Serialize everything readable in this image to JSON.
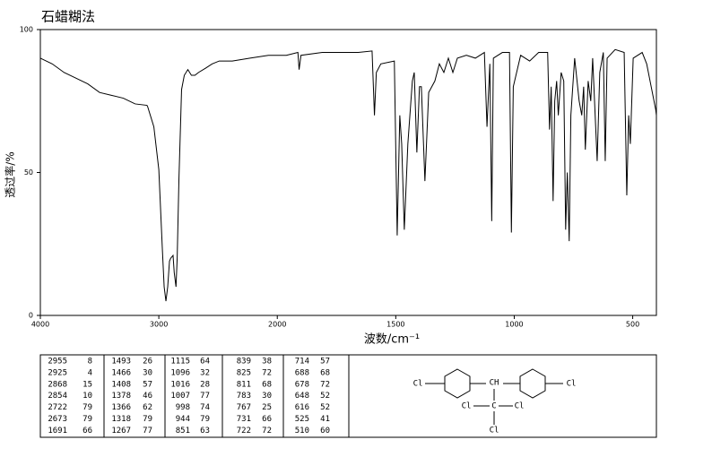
{
  "chart_data": {
    "type": "line",
    "title": "石蜡糊法",
    "x_label": "波数/cm⁻¹",
    "y_label": "透过率/%",
    "x": [
      4000,
      3900,
      3800,
      3700,
      3600,
      3500,
      3400,
      3300,
      3200,
      3100,
      3094,
      3042,
      3000,
      2970,
      2955,
      2940,
      2925,
      2910,
      2900,
      2880,
      2870,
      2855,
      2845,
      2830,
      2808,
      2785,
      2755,
      2725,
      2695,
      2665,
      2605,
      2550,
      2490,
      2380,
      2230,
      2075,
      1962,
      1913,
      1908,
      1900,
      1810,
      1658,
      1600,
      1590,
      1582,
      1563,
      1506,
      1494,
      1483,
      1475,
      1464,
      1449,
      1430,
      1422,
      1411,
      1400,
      1392,
      1377,
      1361,
      1335,
      1316,
      1297,
      1278,
      1259,
      1240,
      1202,
      1164,
      1126,
      1115,
      1103,
      1095,
      1088,
      1050,
      1020,
      1012,
      1004,
      973,
      935,
      897,
      859,
      851,
      844,
      836,
      829,
      821,
      814,
      802,
      791,
      783,
      776,
      768,
      761,
      745,
      726,
      715,
      707,
      700,
      688,
      677,
      669,
      650,
      639,
      624,
      616,
      608,
      574,
      536,
      525,
      517,
      510,
      498,
      460,
      441,
      422,
      403,
      400
    ],
    "series": [
      {
        "color": "#000000",
        "values": [
          90,
          88,
          85,
          83,
          81,
          78,
          77,
          76,
          74,
          73.5,
          73,
          66,
          51,
          23,
          10,
          5,
          10,
          19,
          20,
          21,
          15,
          10,
          20,
          48,
          79,
          84,
          86,
          84,
          84,
          85,
          86.5,
          88,
          89,
          89,
          90,
          91,
          91,
          92,
          86,
          91,
          92,
          92,
          92.5,
          70,
          85,
          88,
          89,
          28,
          70,
          60,
          30,
          60,
          82,
          85,
          57,
          80,
          80,
          47,
          78,
          82,
          88,
          85,
          90,
          85,
          90,
          91,
          90,
          92,
          66,
          88,
          33,
          90,
          92,
          92,
          29,
          80,
          91,
          89,
          92,
          92,
          65,
          80,
          40,
          75,
          82,
          70,
          85,
          82,
          30,
          50,
          26,
          70,
          90,
          75,
          70,
          80,
          58,
          82,
          75,
          90,
          54,
          85,
          92,
          54,
          90,
          93,
          92,
          42,
          70,
          60,
          90,
          92,
          88,
          80,
          72,
          70
        ]
      }
    ],
    "xlim": [
      4000,
      400
    ],
    "xticks": [
      4000,
      3000,
      2000,
      1500,
      1000,
      500
    ],
    "ylim": [
      0,
      100
    ],
    "yticks": [
      0,
      50,
      100
    ]
  },
  "peak_table": [
    [
      [
        2955,
        8
      ],
      [
        2925,
        4
      ],
      [
        2868,
        15
      ],
      [
        2854,
        10
      ],
      [
        2722,
        79
      ],
      [
        2673,
        79
      ],
      [
        1691,
        66
      ]
    ],
    [
      [
        1493,
        26
      ],
      [
        1466,
        30
      ],
      [
        1408,
        57
      ],
      [
        1378,
        46
      ],
      [
        1366,
        62
      ],
      [
        1318,
        79
      ],
      [
        1267,
        77
      ]
    ],
    [
      [
        1115,
        64
      ],
      [
        1096,
        32
      ],
      [
        1016,
        28
      ],
      [
        1007,
        77
      ],
      [
        998,
        74
      ],
      [
        944,
        79
      ],
      [
        851,
        63
      ]
    ],
    [
      [
        839,
        38
      ],
      [
        825,
        72
      ],
      [
        811,
        68
      ],
      [
        783,
        30
      ],
      [
        767,
        25
      ],
      [
        731,
        66
      ],
      [
        722,
        72
      ]
    ],
    [
      [
        714,
        57
      ],
      [
        688,
        68
      ],
      [
        678,
        72
      ],
      [
        648,
        52
      ],
      [
        616,
        52
      ],
      [
        525,
        41
      ],
      [
        510,
        60
      ]
    ]
  ],
  "structure": {
    "labels": [
      "Cl",
      "CH",
      "Cl",
      "Cl",
      "C",
      "Cl",
      "Cl"
    ]
  }
}
